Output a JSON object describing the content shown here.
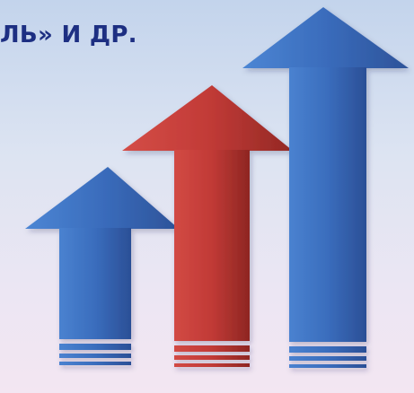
{
  "slide": {
    "heading": "ЛЬ» И ДР.",
    "colors": {
      "heading": "#1d2f82",
      "arrow_blue": "#3b6fbf",
      "arrow_red": "#c13a36"
    },
    "graphic": {
      "arrows": [
        {
          "name": "short-blue-arrow",
          "color": "blue",
          "rank": 1
        },
        {
          "name": "medium-red-arrow",
          "color": "red",
          "rank": 2
        },
        {
          "name": "tall-blue-arrow",
          "color": "blue",
          "rank": 3
        }
      ]
    }
  }
}
